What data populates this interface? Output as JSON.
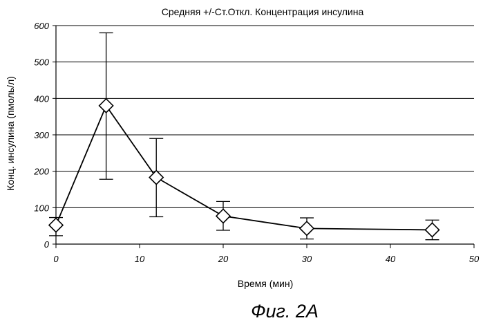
{
  "chart_data": {
    "type": "scatter",
    "title": "Средняя +/-Ст.Откл. Концентрация инсулина",
    "xlabel": "Время (мин)",
    "ylabel": "Конц. инсулина (пмоль/л)",
    "xlim": [
      0,
      50
    ],
    "ylim": [
      0,
      600
    ],
    "xticks": [
      "0",
      "10",
      "20",
      "30",
      "40",
      "50"
    ],
    "yticks": [
      "0",
      "100",
      "200",
      "300",
      "400",
      "500",
      "600"
    ],
    "grid": "horizontal",
    "marker": "diamond",
    "series": [
      {
        "x": [
          0,
          6,
          12,
          20,
          30,
          45
        ],
        "y": [
          52,
          380,
          183,
          77,
          43,
          39
        ],
        "err_low": [
          23,
          178,
          75,
          38,
          14,
          12
        ],
        "err_high": [
          73,
          580,
          290,
          117,
          72,
          66
        ]
      }
    ]
  },
  "caption": "Фиг. 2А"
}
